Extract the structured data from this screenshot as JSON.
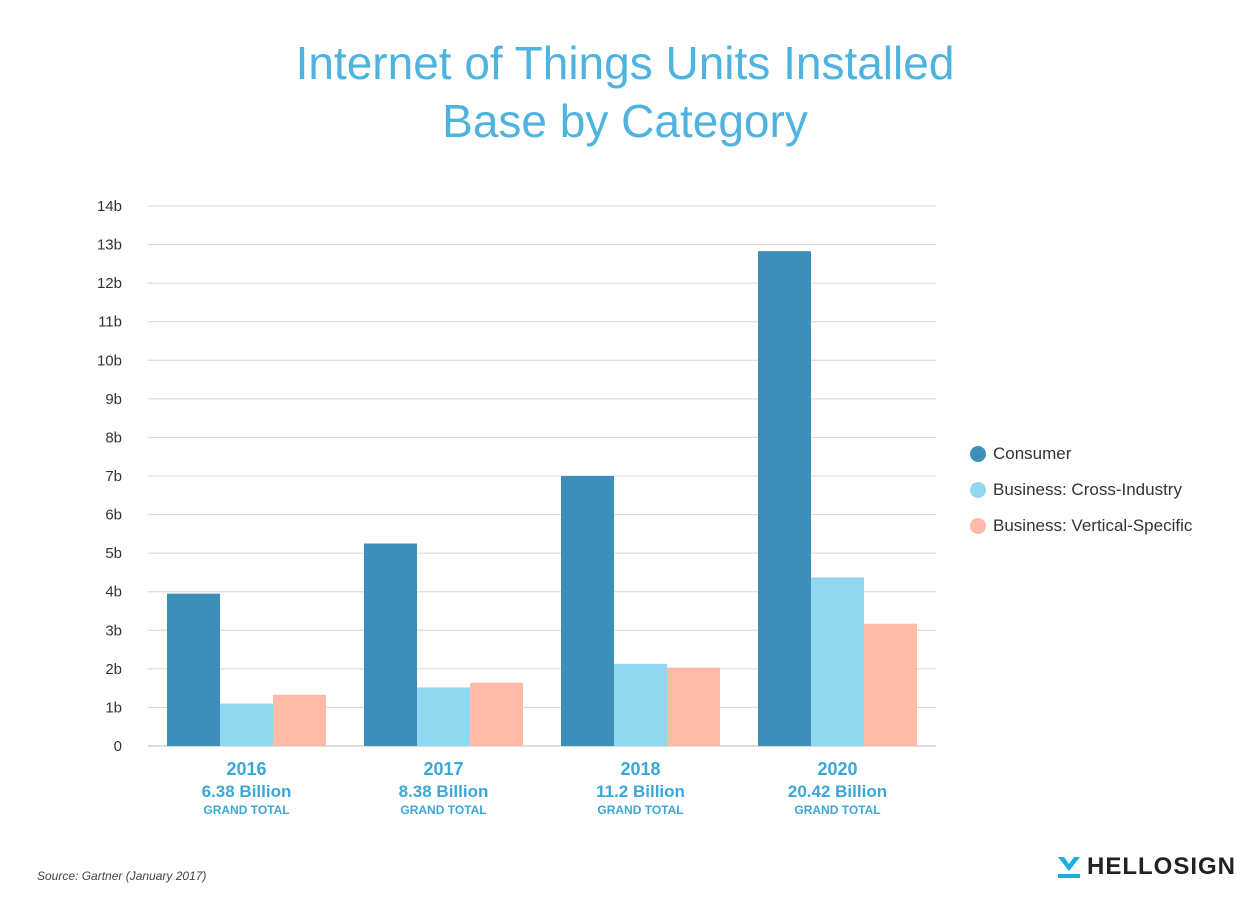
{
  "chart_data": {
    "type": "bar",
    "title": "Internet of Things Units Installed Base by Category",
    "title_lines": [
      "Internet of Things Units Installed",
      "Base by Category"
    ],
    "categories": [
      "2016",
      "2017",
      "2018",
      "2020"
    ],
    "category_totals": [
      "6.38 Billion",
      "8.38 Billion",
      "11.2 Billion",
      "20.42 Billion"
    ],
    "category_total_caption": "GRAND TOTAL",
    "series": [
      {
        "name": "Consumer",
        "color": "#3d8fb9",
        "values": [
          3.95,
          5.25,
          7.0,
          12.83
        ]
      },
      {
        "name": "Business: Cross-Industry",
        "color": "#91d7ef",
        "values": [
          1.1,
          1.52,
          2.13,
          4.37
        ]
      },
      {
        "name": "Business: Vertical-Specific",
        "color": "#ffbaa8",
        "values": [
          1.33,
          1.64,
          2.03,
          3.17
        ]
      }
    ],
    "ylim": [
      0,
      14
    ],
    "yticks": [
      0,
      1,
      2,
      3,
      4,
      5,
      6,
      7,
      8,
      9,
      10,
      11,
      12,
      13,
      14
    ],
    "ytick_labels": [
      "0",
      "1b",
      "2b",
      "3b",
      "4b",
      "5b",
      "6b",
      "7b",
      "8b",
      "9b",
      "10b",
      "11b",
      "12b",
      "13b",
      "14b"
    ],
    "grid": true,
    "legend": "right"
  },
  "footer": {
    "source": "Source: Gartner (January 2017)",
    "logo_text": "HELLOSIGN",
    "logo_icon": "hellosign-check-icon"
  }
}
